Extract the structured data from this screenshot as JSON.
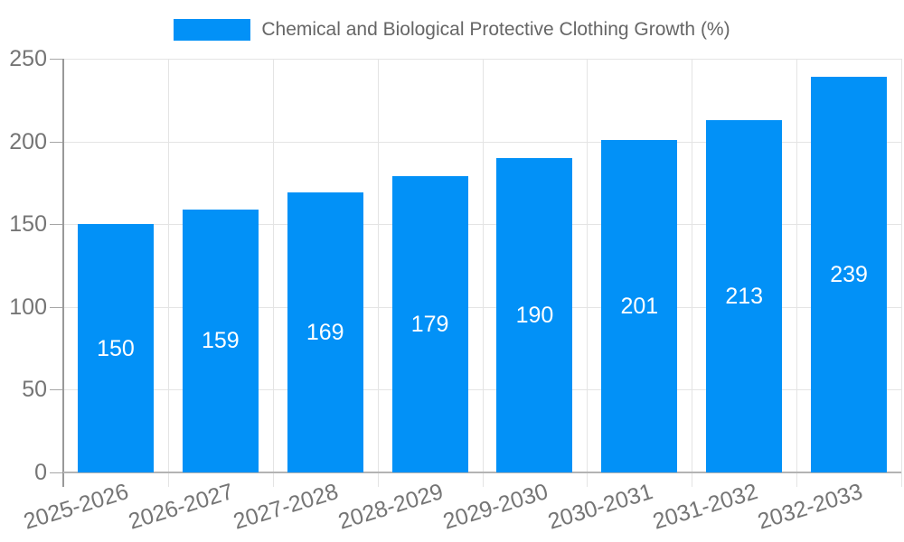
{
  "chart_data": {
    "type": "bar",
    "title": "",
    "legend": [
      "Chemical and Biological Protective Clothing Growth (%)"
    ],
    "legend_position": "top",
    "categories": [
      "2025-2026",
      "2026-2027",
      "2027-2028",
      "2028-2029",
      "2029-2030",
      "2030-2031",
      "2031-2032",
      "2032-2033"
    ],
    "series": [
      {
        "name": "Chemical and Biological Protective Clothing Growth (%)",
        "values": [
          150,
          159,
          169,
          179,
          190,
          201,
          213,
          239
        ]
      }
    ],
    "data_labels_position": "inside-center",
    "xlabel": "",
    "ylabel": "",
    "ylim": [
      0,
      250
    ],
    "yticks": [
      0,
      50,
      100,
      150,
      200,
      250
    ],
    "grid": true,
    "x_tick_label_rotation_deg": -17,
    "colors": {
      "bar": "#0291F7",
      "bar_label": "#FFFFFF",
      "grid": "#E4E4E4",
      "y_axis_line": "#999999",
      "x_axis_line": "#B3B3B3",
      "tick": "#A6A6A6",
      "axis_text": "#757575",
      "legend_text": "#666666",
      "background": "#FFFFFF"
    }
  }
}
